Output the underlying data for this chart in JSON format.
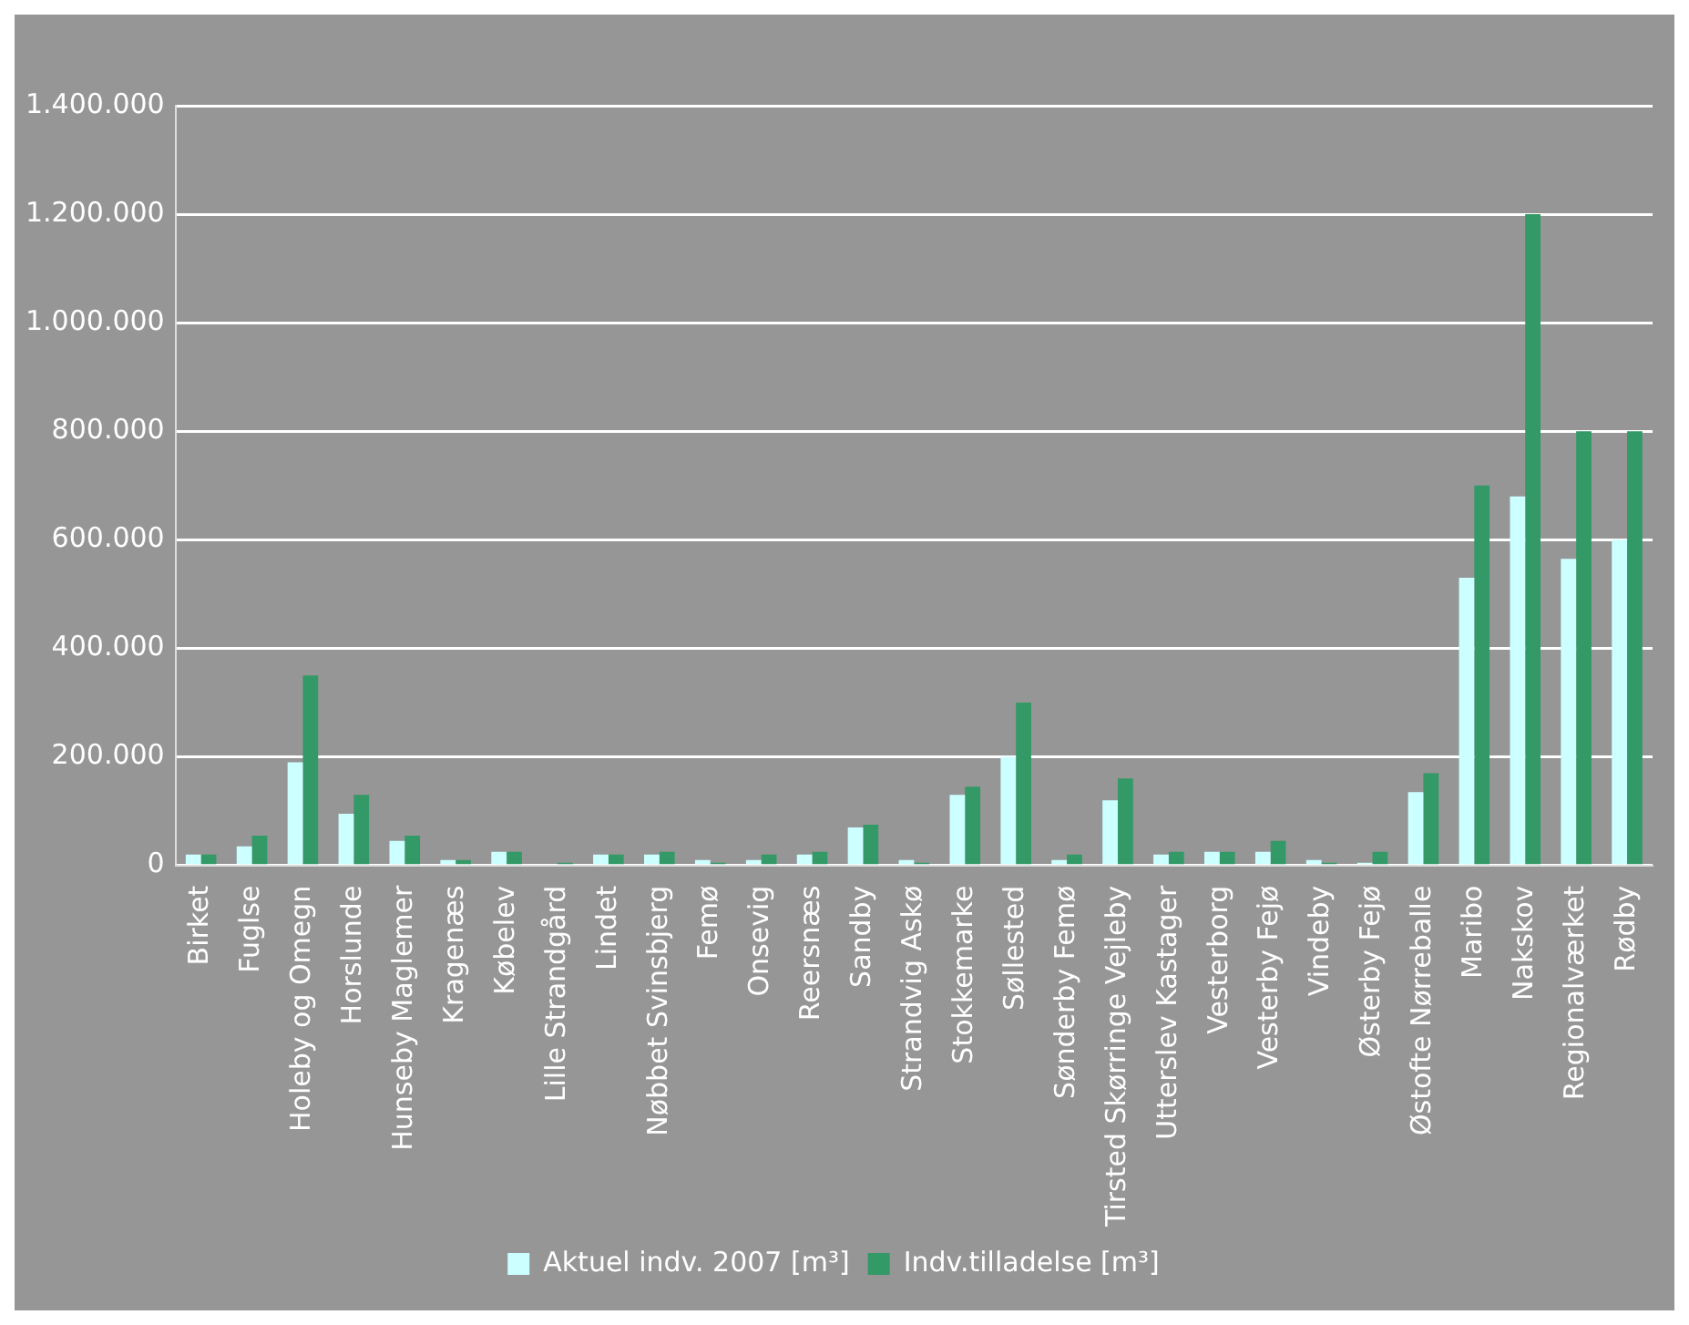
{
  "chart_data": {
    "type": "bar",
    "categories": [
      "Birket",
      "Fuglse",
      "Holeby og Omegn",
      "Horslunde",
      "Hunseby Maglemer",
      "Kragenæs",
      "Købelev",
      "Lille Strandgård",
      "Lindet",
      "Nøbbet Svinsbjerg",
      "Femø",
      "Onsevig",
      "Reersnæs",
      "Sandby",
      "Strandvig Askø",
      "Stokkemarke",
      "Søllested",
      "Sønderby Femø",
      "Tirsted Skørringe Vejleby",
      "Utterslev Kastager",
      "Vesterborg",
      "Vesterby Fejø",
      "Vindeby",
      "Østerby Fejø",
      "Østofte Nørreballe",
      "Maribo",
      "Nakskov",
      "Regionalværket",
      "Rødby"
    ],
    "series": [
      {
        "name": "Aktuel indv. 2007 [m³]",
        "color": "#ccffff",
        "values": [
          20000,
          35000,
          190000,
          95000,
          45000,
          10000,
          25000,
          0,
          20000,
          20000,
          10000,
          10000,
          20000,
          70000,
          10000,
          130000,
          200000,
          10000,
          120000,
          20000,
          25000,
          25000,
          10000,
          5000,
          135000,
          530000,
          680000,
          565000,
          600000
        ]
      },
      {
        "name": "Indv.tilladelse [m³]",
        "color": "#339966",
        "values": [
          20000,
          55000,
          350000,
          130000,
          55000,
          10000,
          25000,
          5000,
          20000,
          25000,
          5000,
          20000,
          25000,
          75000,
          5000,
          145000,
          300000,
          20000,
          160000,
          25000,
          25000,
          45000,
          5000,
          25000,
          170000,
          700000,
          1200000,
          800000,
          800000
        ]
      }
    ],
    "ylim": [
      0,
      1400000
    ],
    "yticks": [
      {
        "value": 0,
        "label": "0"
      },
      {
        "value": 200000,
        "label": "200.000"
      },
      {
        "value": 400000,
        "label": "400.000"
      },
      {
        "value": 600000,
        "label": "600.000"
      },
      {
        "value": 800000,
        "label": "800.000"
      },
      {
        "value": 1000000,
        "label": "1.000.000"
      },
      {
        "value": 1200000,
        "label": "1.200.000"
      },
      {
        "value": 1400000,
        "label": "1.400.000"
      }
    ],
    "grid": "y",
    "legend": "bottom"
  }
}
